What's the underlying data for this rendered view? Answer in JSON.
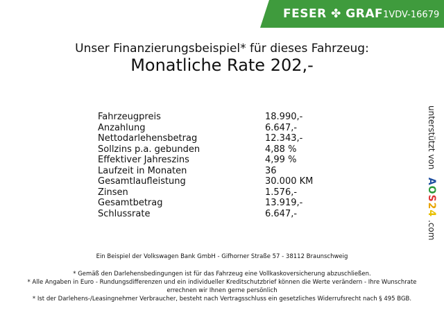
{
  "header": {
    "brand": "FESER",
    "brand2": "GRAF",
    "symbol": "✤",
    "code": "1VDV-16679",
    "brand_color": "#3f9b3d"
  },
  "title": {
    "line1": "Unser Finanzierungsbeispiel* für dieses Fahrzeug:",
    "line2": "Monatliche Rate 202,-"
  },
  "rows": [
    {
      "label": "Fahrzeugpreis",
      "value": "18.990,-"
    },
    {
      "label": "Anzahlung",
      "value": "6.647,-"
    },
    {
      "label": "Nettodarlehensbetrag",
      "value": "12.343,-"
    },
    {
      "label": "Sollzins p.a. gebunden",
      "value": "4,88 %"
    },
    {
      "label": "Effektiver Jahreszins",
      "value": "4,99 %"
    },
    {
      "label": "Laufzeit in Monaten",
      "value": "36"
    },
    {
      "label": "Gesamtlaufleistung",
      "value": "30.000 KM"
    },
    {
      "label": "Zinsen",
      "value": "1.576,-"
    },
    {
      "label": "Gesamtbetrag",
      "value": "13.919,-"
    },
    {
      "label": "Schlussrate",
      "value": "6.647,-"
    }
  ],
  "side": {
    "text": "unterstützt von",
    "logo": [
      "A",
      "O",
      "S",
      "2",
      "4"
    ],
    "logo_colors": [
      "#1f4fa0",
      "#2a9a3a",
      "#d33",
      "#e8a400",
      "#e8c000"
    ],
    "suffix": ".com"
  },
  "footer": {
    "bank": "Ein Beispiel der Volkswagen Bank GmbH - Gifhorner Straße 57 - 38112 Braunschweig",
    "note1": "* Gemäß den Darlehensbedingungen ist für das Fahrzeug eine Vollkaskoversicherung abzuschließen.",
    "note2": "* Alle Angaben in Euro - Rundungsdifferenzen und ein individueller Kreditschutzbrief können die Werte verändern - Ihre Wunschrate errechnen wir Ihnen gerne persönlich",
    "note3": "* Ist der Darlehens-/Leasingnehmer Verbraucher, besteht nach Vertragsschluss ein gesetzliches Widerrufsrecht nach § 495 BGB."
  }
}
